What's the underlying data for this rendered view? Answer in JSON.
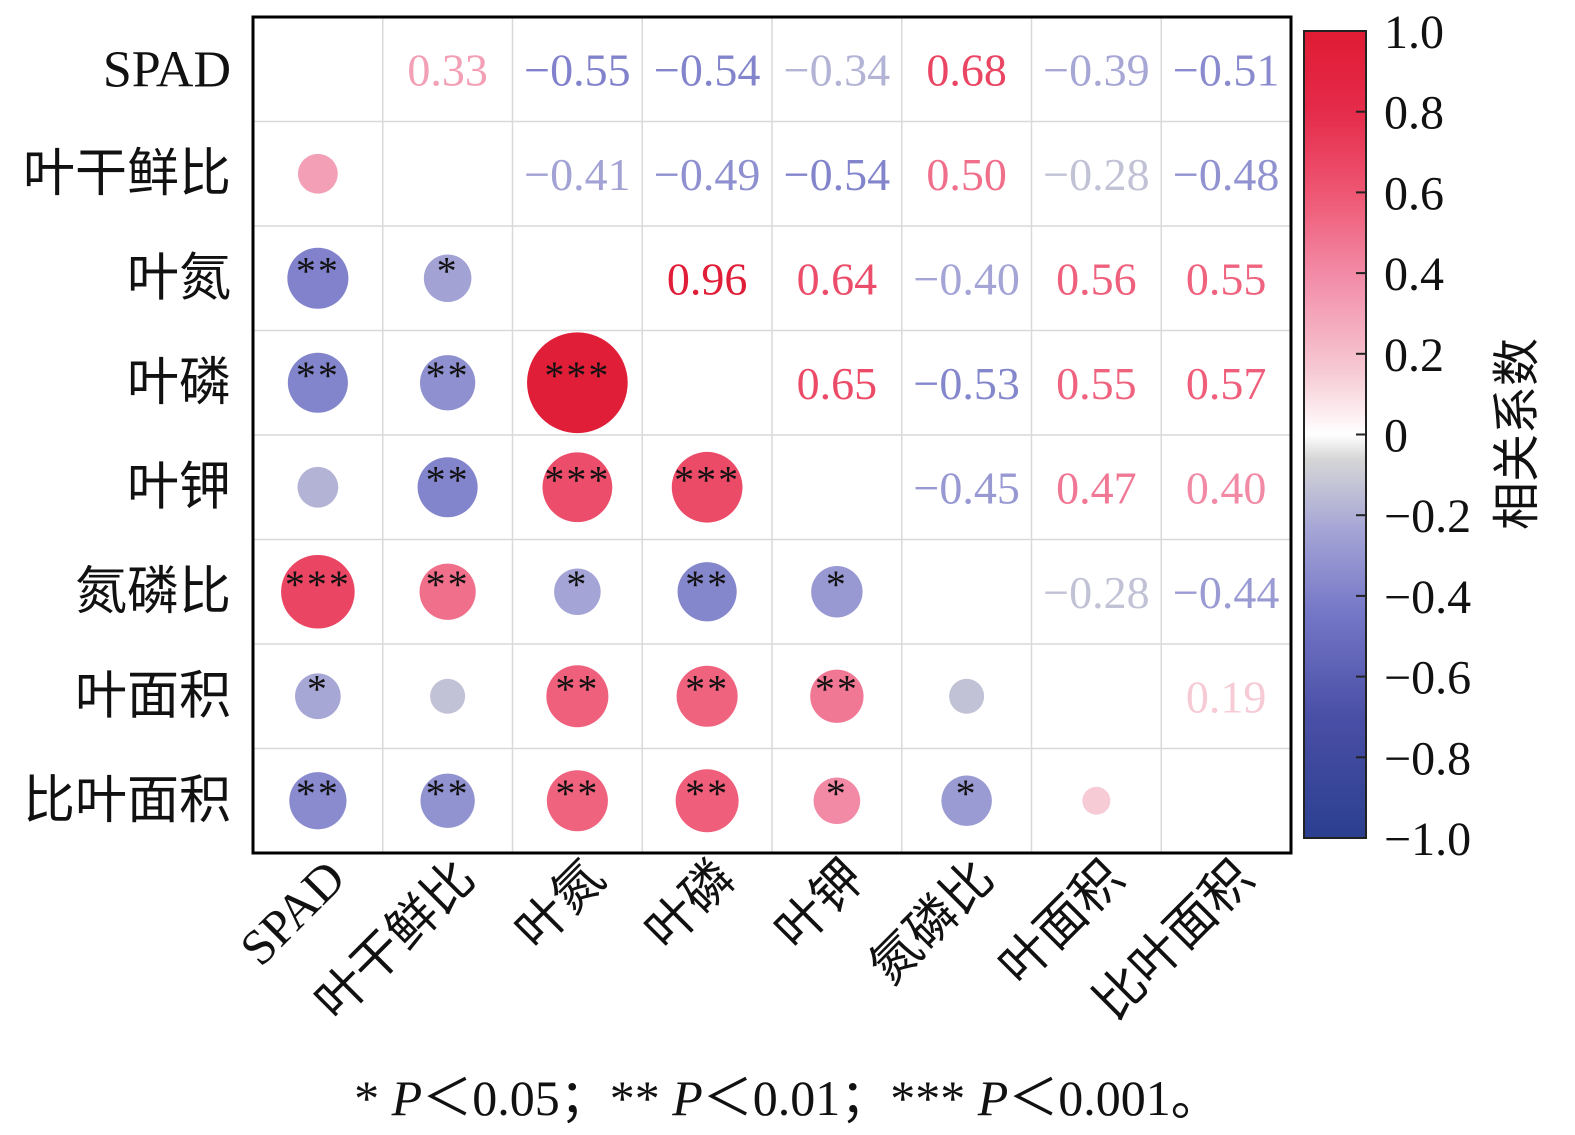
{
  "chart_data": {
    "type": "heatmap",
    "variables": [
      "SPAD",
      "叶干鲜比",
      "叶氮",
      "叶磷",
      "叶钾",
      "氮磷比",
      "叶面积",
      "比叶面积"
    ],
    "upper_values": [
      [
        null,
        0.33,
        -0.55,
        -0.54,
        -0.34,
        0.68,
        -0.39,
        -0.51
      ],
      [
        null,
        null,
        -0.41,
        -0.49,
        -0.54,
        0.5,
        -0.28,
        -0.48
      ],
      [
        null,
        null,
        null,
        0.96,
        0.64,
        -0.4,
        0.56,
        0.55
      ],
      [
        null,
        null,
        null,
        null,
        0.65,
        -0.53,
        0.55,
        0.57
      ],
      [
        null,
        null,
        null,
        null,
        null,
        -0.45,
        0.47,
        0.4
      ],
      [
        null,
        null,
        null,
        null,
        null,
        null,
        -0.28,
        -0.44
      ],
      [
        null,
        null,
        null,
        null,
        null,
        null,
        null,
        0.19
      ],
      [
        null,
        null,
        null,
        null,
        null,
        null,
        null,
        null
      ]
    ],
    "upper_labels": [
      [
        "",
        "0.33",
        "−0.55",
        "−0.54",
        "−0.34",
        "0.68",
        "−0.39",
        "−0.51"
      ],
      [
        "",
        "",
        "−0.41",
        "−0.49",
        "−0.54",
        "0.50",
        "−0.28",
        "−0.48"
      ],
      [
        "",
        "",
        "",
        "0.96",
        "0.64",
        "−0.40",
        "0.56",
        "0.55"
      ],
      [
        "",
        "",
        "",
        "",
        "0.65",
        "−0.53",
        "0.55",
        "0.57"
      ],
      [
        "",
        "",
        "",
        "",
        "",
        "−0.45",
        "0.47",
        "0.40"
      ],
      [
        "",
        "",
        "",
        "",
        "",
        "",
        "−0.28",
        "−0.44"
      ],
      [
        "",
        "",
        "",
        "",
        "",
        "",
        "",
        "0.19"
      ],
      [
        "",
        "",
        "",
        "",
        "",
        "",
        "",
        ""
      ]
    ],
    "lower_significance": [
      [
        "",
        "",
        "",
        "",
        "",
        "",
        "",
        ""
      ],
      [
        "",
        "",
        "",
        "",
        "",
        "",
        "",
        ""
      ],
      [
        "**",
        "*",
        "",
        "",
        "",
        "",
        "",
        ""
      ],
      [
        "**",
        "**",
        "***",
        "",
        "",
        "",
        "",
        ""
      ],
      [
        "",
        "**",
        "***",
        "***",
        "",
        "",
        "",
        ""
      ],
      [
        "***",
        "**",
        "*",
        "**",
        "*",
        "",
        "",
        ""
      ],
      [
        "*",
        "",
        "**",
        "**",
        "**",
        "",
        "",
        ""
      ],
      [
        "**",
        "**",
        "**",
        "**",
        "*",
        "*",
        "",
        ""
      ]
    ],
    "colorbar": {
      "label": "相关系数",
      "range": [
        -1.0,
        1.0
      ],
      "ticks": [
        "1.0",
        "0.8",
        "0.6",
        "0.4",
        "0.2",
        "0",
        "−0.2",
        "−0.4",
        "−0.6",
        "−0.8",
        "−1.0"
      ],
      "colors": [
        "#2b3f8f",
        "#4a4fa6",
        "#7577c7",
        "#a4a4d6",
        "#d6d6d6",
        "#ffffff",
        "#f6c8d3",
        "#f28aa6",
        "#ee5672",
        "#e52b4b",
        "#e01b33"
      ]
    },
    "grid": true
  },
  "footnote": {
    "s1": "* ",
    "p1": "P",
    "t1": "＜0.05；",
    "s2": "** ",
    "p2": "P",
    "t2": "＜0.01；",
    "s3": "*** ",
    "p3": "P",
    "t3": "＜0.001。"
  }
}
